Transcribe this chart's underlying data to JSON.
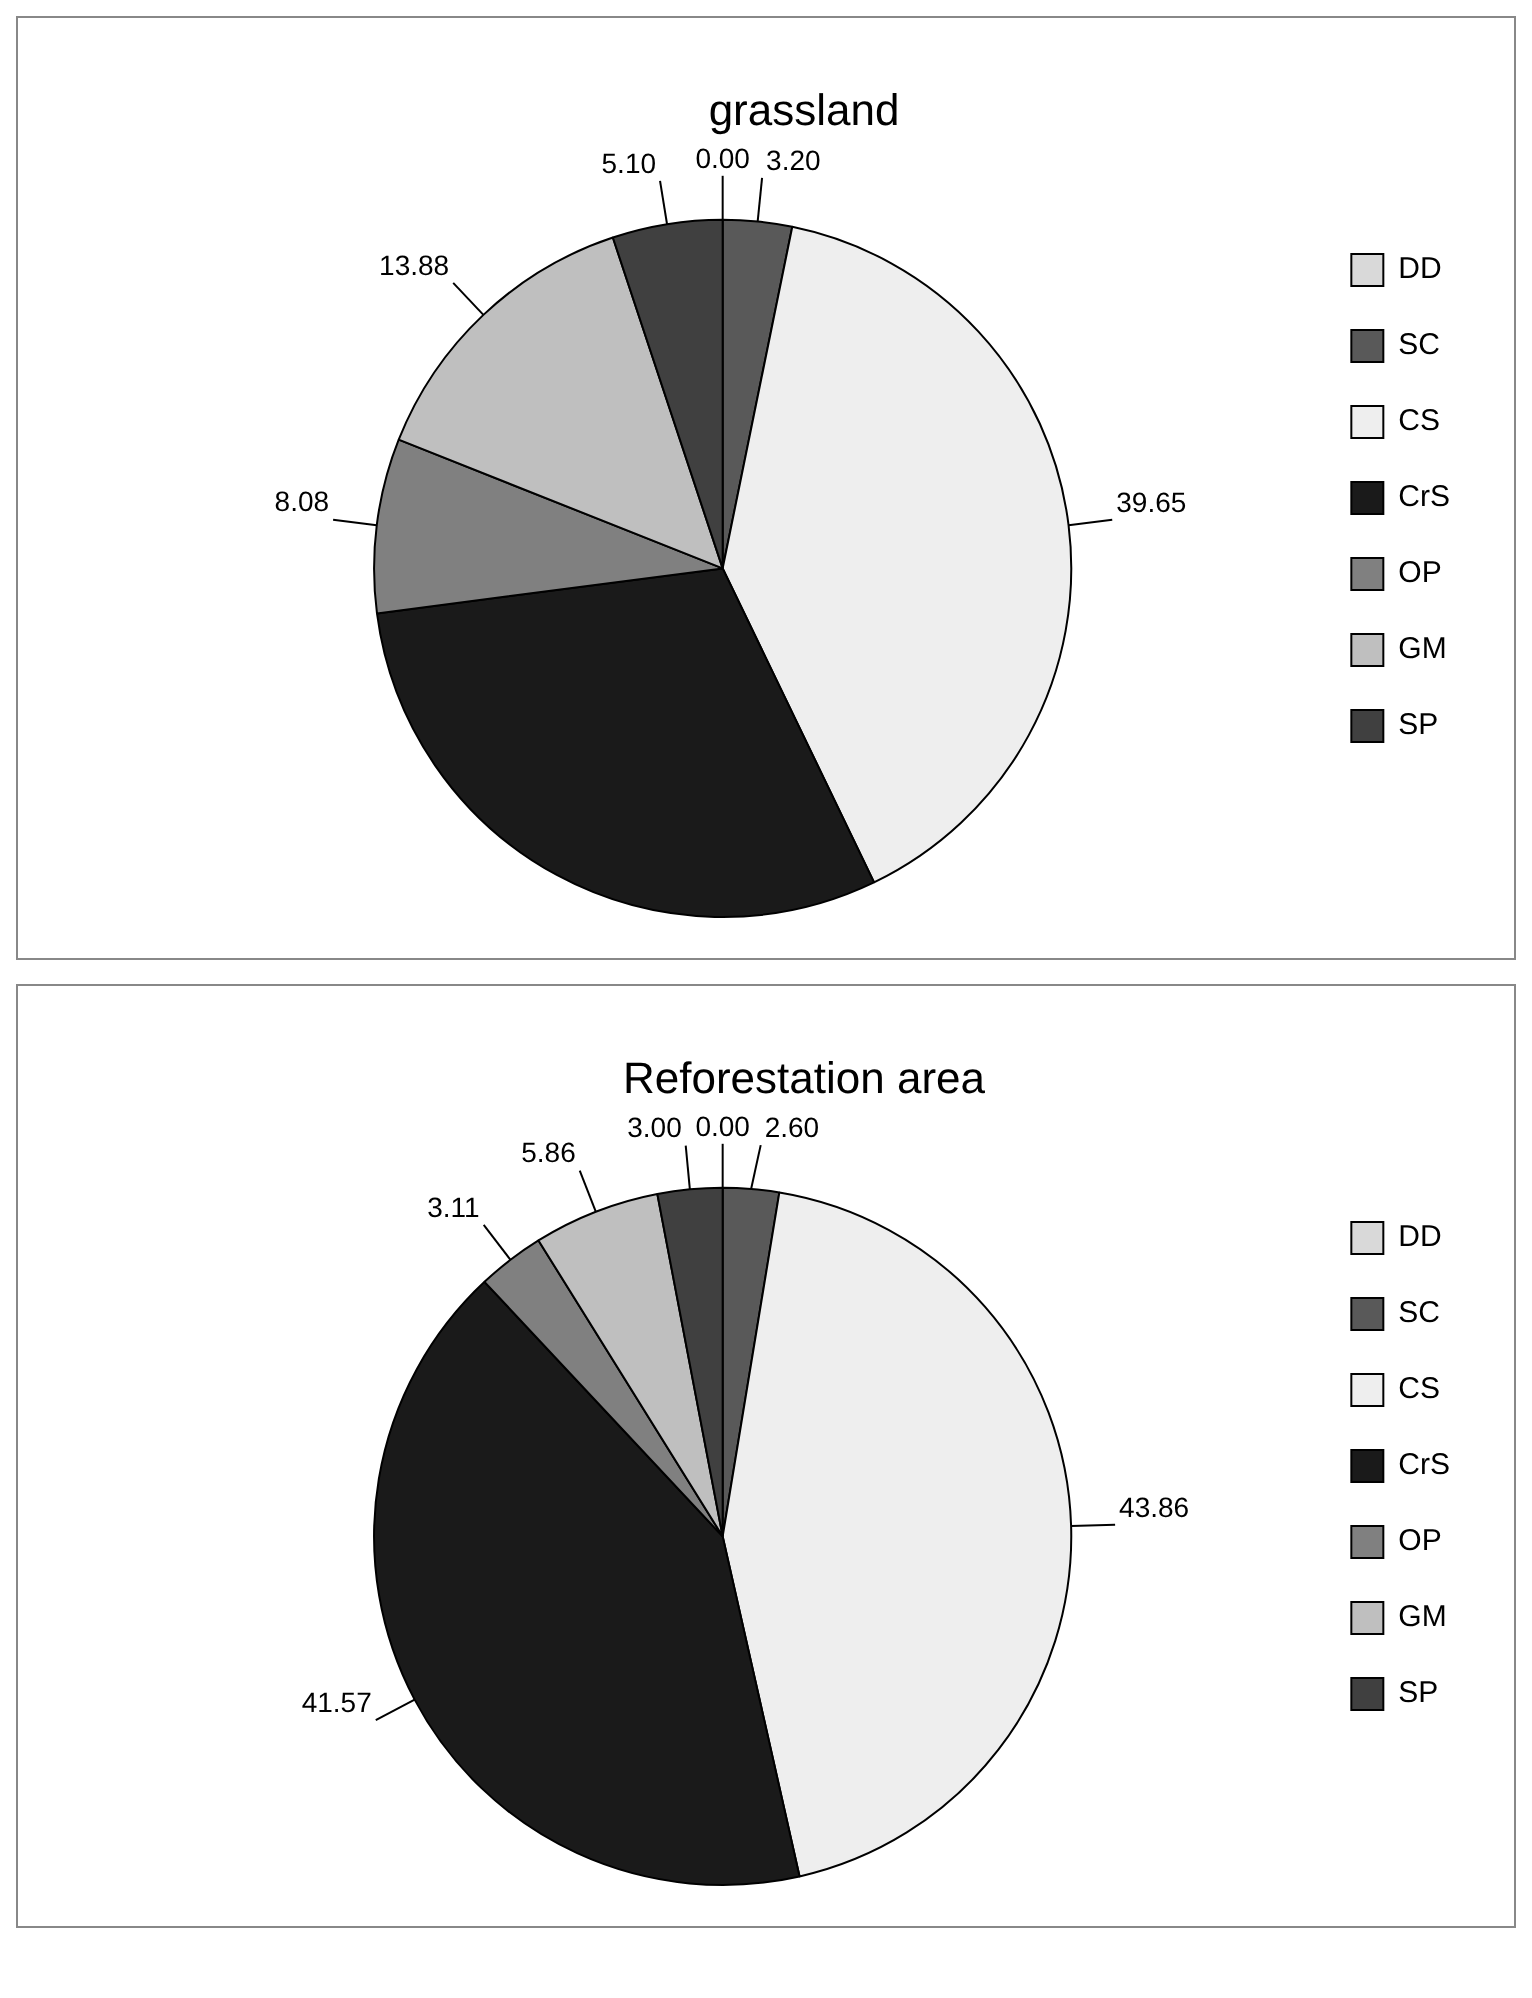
{
  "chart_data": [
    {
      "type": "pie",
      "title": "grassland",
      "categories": [
        "DD",
        "SC",
        "CS",
        "CrS",
        "OP",
        "GM",
        "SP"
      ],
      "values": [
        0.0,
        3.2,
        39.65,
        30.09,
        8.08,
        13.88,
        5.1
      ],
      "colors": [
        "#d9d9d9",
        "#595959",
        "#eeeeee",
        "#1a1a1a",
        "#808080",
        "#bfbfbf",
        "#404040"
      ],
      "value_labels": [
        "0.00",
        "3.20",
        "39.65",
        null,
        "8.08",
        "13.88",
        "5.10"
      ],
      "legend": "right"
    },
    {
      "type": "pie",
      "title": "Reforestation area",
      "categories": [
        "DD",
        "SC",
        "CS",
        "CrS",
        "OP",
        "GM",
        "SP"
      ],
      "values": [
        0.0,
        2.6,
        43.86,
        41.57,
        3.11,
        5.86,
        3.0
      ],
      "colors": [
        "#d9d9d9",
        "#595959",
        "#eeeeee",
        "#1a1a1a",
        "#808080",
        "#bfbfbf",
        "#404040"
      ],
      "value_labels": [
        "0.00",
        "2.60",
        "43.86",
        "41.57",
        "3.11",
        "5.86",
        "3.00"
      ],
      "legend": "right"
    }
  ]
}
